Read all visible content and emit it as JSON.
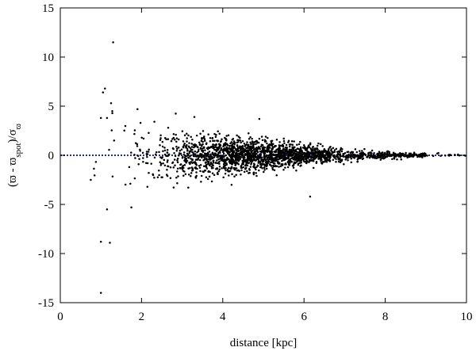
{
  "chart_data": {
    "type": "scatter",
    "title": "",
    "xlabel": "distance [kpc]",
    "ylabel": {
      "parts": [
        {
          "t": "(ϖ - ϖ",
          "sub": false
        },
        {
          "t": "spot",
          "sub": true
        },
        {
          "t": ")/σ",
          "sub": false
        },
        {
          "t": "ϖ",
          "sub": true
        }
      ]
    },
    "xlim": [
      0,
      10
    ],
    "ylim": [
      -15,
      15
    ],
    "x_ticks": [
      0,
      2,
      4,
      6,
      8,
      10
    ],
    "y_ticks": [
      -15,
      -10,
      -5,
      0,
      5,
      10,
      15
    ],
    "x_tick_labels": [
      "0",
      "2",
      "4",
      "6",
      "8",
      "10"
    ],
    "y_tick_labels": [
      "-15",
      "-10",
      "-5",
      "0",
      "5",
      "10",
      "15"
    ],
    "grid": false,
    "legend": "none",
    "reference_line": {
      "y": 0,
      "style": "dotted",
      "color": "#1f2f9c"
    },
    "point_color": "#000000",
    "outliers": [
      {
        "x": 1.3,
        "y": 11.5
      },
      {
        "x": 1.1,
        "y": 6.8
      },
      {
        "x": 1.05,
        "y": 6.4
      },
      {
        "x": 1.25,
        "y": 5.3
      },
      {
        "x": 1.0,
        "y": 3.8
      },
      {
        "x": 1.15,
        "y": 3.8
      },
      {
        "x": 1.9,
        "y": 4.7
      },
      {
        "x": 1.0,
        "y": -8.8
      },
      {
        "x": 1.22,
        "y": -8.9
      },
      {
        "x": 1.0,
        "y": -14.0
      },
      {
        "x": 1.15,
        "y": -5.5
      },
      {
        "x": 1.75,
        "y": -5.3
      },
      {
        "x": 6.15,
        "y": -4.2
      },
      {
        "x": 0.75,
        "y": -2.5
      },
      {
        "x": 4.9,
        "y": 3.7
      },
      {
        "x": 3.3,
        "y": 3.9
      }
    ],
    "bulk": {
      "note": "dense cloud of ~2200 points; spread shrinks with distance",
      "count": 2200,
      "x_range": [
        0.8,
        10
      ],
      "sigma_profile": [
        {
          "x": 1.0,
          "sigma": 2.4
        },
        {
          "x": 2.0,
          "sigma": 1.5
        },
        {
          "x": 3.0,
          "sigma": 1.15
        },
        {
          "x": 4.0,
          "sigma": 0.95
        },
        {
          "x": 5.0,
          "sigma": 0.75
        },
        {
          "x": 6.0,
          "sigma": 0.5
        },
        {
          "x": 7.0,
          "sigma": 0.3
        },
        {
          "x": 8.0,
          "sigma": 0.17
        },
        {
          "x": 9.0,
          "sigma": 0.09
        },
        {
          "x": 10.0,
          "sigma": 0.06
        }
      ],
      "density_peak_x": 4.6,
      "density_width": 1.9
    }
  }
}
